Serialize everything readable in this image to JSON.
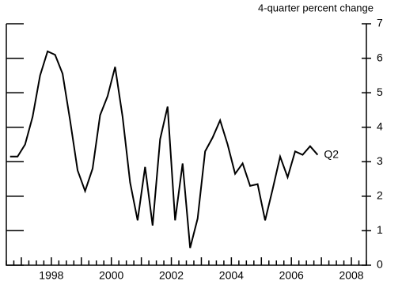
{
  "chart_data": {
    "type": "line",
    "y_axis_label": "4-quarter percent change",
    "annotation": "Q2",
    "x": [
      1996.625,
      1996.875,
      1997.125,
      1997.375,
      1997.625,
      1997.875,
      1998.125,
      1998.375,
      1998.625,
      1998.875,
      1999.125,
      1999.375,
      1999.625,
      1999.875,
      2000.125,
      2000.375,
      2000.625,
      2000.875,
      2001.125,
      2001.375,
      2001.625,
      2001.875,
      2002.125,
      2002.375,
      2002.625,
      2002.875,
      2003.125,
      2003.375,
      2003.625,
      2003.875,
      2004.125,
      2004.375,
      2004.625,
      2004.875,
      2005.125,
      2005.375,
      2005.625,
      2005.875,
      2006.125,
      2006.375,
      2006.625,
      2006.875
    ],
    "series": [
      {
        "color": "#000000",
        "values": [
          3.15,
          3.15,
          3.5,
          4.3,
          5.5,
          6.2,
          6.1,
          5.55,
          4.2,
          2.75,
          2.15,
          2.8,
          4.35,
          4.9,
          5.75,
          4.3,
          2.4,
          1.3,
          2.85,
          1.15,
          3.65,
          4.6,
          1.3,
          2.95,
          0.5,
          1.35,
          3.3,
          3.7,
          4.2,
          3.5,
          2.65,
          2.95,
          2.3,
          2.35,
          1.3,
          2.2,
          3.15,
          2.55,
          3.3,
          3.2,
          3.45,
          3.2
        ]
      }
    ],
    "xlim": [
      1996.5,
      2008.5
    ],
    "xticks": [
      1998,
      2000,
      2002,
      2004,
      2006,
      2008
    ],
    "ylim": [
      0,
      7
    ],
    "yticks": [
      0,
      1,
      2,
      3,
      4,
      5,
      6,
      7
    ]
  }
}
